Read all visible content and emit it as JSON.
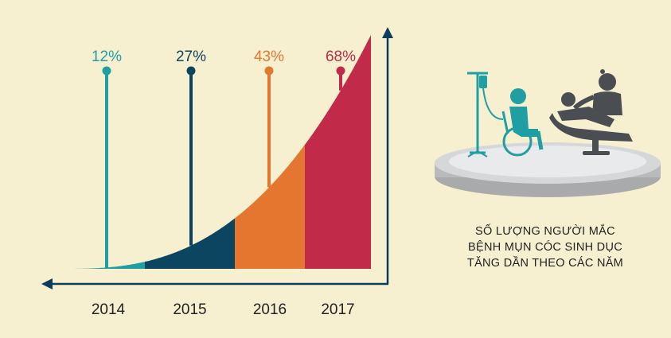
{
  "chart_data": {
    "type": "area",
    "categories": [
      "2014",
      "2015",
      "2016",
      "2017"
    ],
    "values": [
      12,
      27,
      43,
      68
    ],
    "value_labels": [
      "12%",
      "27%",
      "43%",
      "68%"
    ],
    "colors": [
      "#1f9fa3",
      "#0c4560",
      "#e47630",
      "#c22a4a"
    ],
    "unit": "%",
    "title": "",
    "xlabel": "",
    "ylabel": ""
  },
  "caption": {
    "line1": "SỐ LƯỢNG NGƯỜI MẮC",
    "line2": "BỆNH MỤN CÓC SINH DỤC",
    "line3": "TĂNG DẦN THEO CÁC NĂM"
  },
  "illustration": {
    "icons": [
      "iv-drip-icon",
      "wheelchair-patient-icon",
      "doctor-icon",
      "patient-on-exam-chair-icon"
    ],
    "platform_color": "#b9babc"
  }
}
